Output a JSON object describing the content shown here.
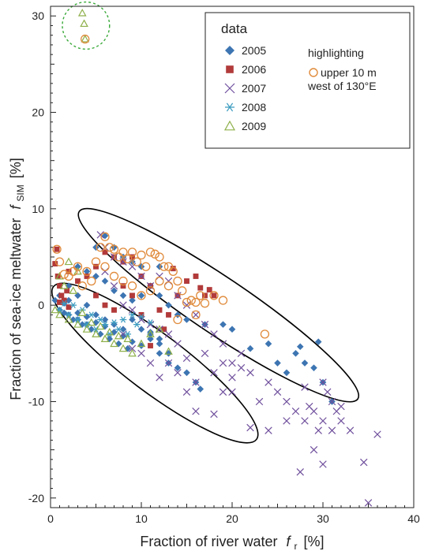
{
  "chart_data": {
    "type": "scatter",
    "title": "",
    "xlabel_main": "Fraction of river water",
    "xlabel_var": "f",
    "xlabel_sub": "r",
    "xlabel_unit": "[%]",
    "ylabel_main": "Fraction of sea-ice meltwater",
    "ylabel_var": "f",
    "ylabel_sub": "SIM",
    "ylabel_unit": "[%]",
    "xlim": [
      0,
      40
    ],
    "ylim": [
      -21,
      31
    ],
    "xticks": [
      0,
      10,
      20,
      30,
      40
    ],
    "yticks": [
      -20,
      -10,
      0,
      10,
      20,
      30
    ],
    "legend": {
      "title": "data",
      "highlight_title": "highlighting",
      "highlight_label_1": "upper 10 m",
      "highlight_label_2": "west of 130°E",
      "placement": "top-right"
    },
    "colors": {
      "2005": "#3d75b2",
      "2006": "#b23a3a",
      "2007": "#6f4f9c",
      "2008": "#3c9cc0",
      "2009": "#8eb04a",
      "highlight": "#e08a3a",
      "ellipse": "#000000",
      "outlier_circle": "#3aaa3a"
    },
    "series": [
      {
        "name": "2005",
        "marker": "diamond",
        "points": [
          [
            0.5,
            0.5
          ],
          [
            1,
            -0.5
          ],
          [
            1.5,
            0.2
          ],
          [
            2,
            -1
          ],
          [
            2.5,
            -1.5
          ],
          [
            3,
            -0.8
          ],
          [
            3.5,
            -2
          ],
          [
            4,
            -1.2
          ],
          [
            4.5,
            -2.5
          ],
          [
            5,
            -1.8
          ],
          [
            5.5,
            -3
          ],
          [
            6,
            -2.2
          ],
          [
            6.5,
            -3.5
          ],
          [
            7,
            -2.8
          ],
          [
            7.5,
            -4
          ],
          [
            8,
            -3.2
          ],
          [
            8.5,
            -4.5
          ],
          [
            9,
            -3.8
          ],
          [
            10,
            -4.2
          ],
          [
            11,
            -3.5
          ],
          [
            12,
            -5
          ],
          [
            13,
            -6
          ],
          [
            14,
            -6.5
          ],
          [
            15,
            -7
          ],
          [
            16,
            -8
          ],
          [
            16.5,
            -8.7
          ],
          [
            13,
            -5
          ],
          [
            12,
            -4
          ],
          [
            11,
            -3
          ],
          [
            3,
            4
          ],
          [
            4,
            3.5
          ],
          [
            5,
            3
          ],
          [
            6,
            2.5
          ],
          [
            7,
            1.5
          ],
          [
            8,
            1
          ],
          [
            9,
            0.5
          ],
          [
            10,
            1
          ],
          [
            11,
            2
          ],
          [
            12,
            1
          ],
          [
            13,
            0
          ],
          [
            14,
            -1
          ],
          [
            15,
            -1.5
          ],
          [
            17,
            -2
          ],
          [
            19,
            -2
          ],
          [
            20,
            -2.5
          ],
          [
            22,
            -4.5
          ],
          [
            24,
            -4
          ],
          [
            25,
            -6
          ],
          [
            26,
            -7
          ],
          [
            27,
            -5
          ],
          [
            28,
            -6
          ],
          [
            29,
            -6.5
          ],
          [
            29.5,
            -3.8
          ],
          [
            30,
            -8
          ],
          [
            31,
            -10
          ],
          [
            27.5,
            -4.3
          ],
          [
            6,
            7.2
          ],
          [
            5,
            6
          ],
          [
            8,
            5
          ],
          [
            7,
            6
          ],
          [
            9,
            4.5
          ],
          [
            10,
            4
          ],
          [
            12,
            4
          ],
          [
            1,
            1
          ],
          [
            2,
            0.5
          ],
          [
            1.5,
            -0.8
          ],
          [
            3,
            -1.5
          ],
          [
            4,
            -2
          ],
          [
            2,
            2
          ],
          [
            3,
            1
          ],
          [
            4,
            0
          ],
          [
            5,
            -1
          ],
          [
            6,
            -1.5
          ],
          [
            7,
            -2
          ],
          [
            8,
            -2.5
          ],
          [
            9,
            -1.5
          ],
          [
            10,
            -2.5
          ],
          [
            11,
            -2.8
          ],
          [
            12,
            -3.5
          ]
        ]
      },
      {
        "name": "2006",
        "marker": "square",
        "points": [
          [
            0.5,
            4.3
          ],
          [
            0.8,
            3
          ],
          [
            1,
            2
          ],
          [
            1.2,
            1
          ],
          [
            1.5,
            0.5
          ],
          [
            0.7,
            5.8
          ],
          [
            1.8,
            1.5
          ],
          [
            2,
            3.5
          ],
          [
            3,
            2.5
          ],
          [
            4,
            3
          ],
          [
            5,
            4
          ],
          [
            6,
            5.5
          ],
          [
            7,
            5
          ],
          [
            8,
            4.5
          ],
          [
            9,
            5
          ],
          [
            10,
            3
          ],
          [
            11,
            2
          ],
          [
            12,
            -0.5
          ],
          [
            13,
            -1
          ],
          [
            13.5,
            3.8
          ],
          [
            14,
            1
          ],
          [
            15,
            2.5
          ],
          [
            16,
            3
          ],
          [
            16.5,
            1.8
          ],
          [
            17,
            1
          ],
          [
            17.5,
            1.6
          ],
          [
            18,
            1
          ],
          [
            11,
            -4.2
          ],
          [
            12.5,
            -2.5
          ],
          [
            10,
            -1
          ],
          [
            5,
            1
          ],
          [
            6,
            0
          ],
          [
            7,
            -0.5
          ],
          [
            8,
            2
          ],
          [
            9,
            1
          ],
          [
            1,
            0.3
          ],
          [
            2,
            -0.2
          ]
        ]
      },
      {
        "name": "2007",
        "marker": "x",
        "points": [
          [
            5.5,
            7.3
          ],
          [
            6,
            6
          ],
          [
            7,
            5
          ],
          [
            8,
            4.5
          ],
          [
            9,
            4
          ],
          [
            10,
            3
          ],
          [
            11,
            2
          ],
          [
            12,
            3
          ],
          [
            13,
            2.5
          ],
          [
            14,
            1
          ],
          [
            15,
            0
          ],
          [
            16,
            -1
          ],
          [
            17,
            -2
          ],
          [
            18,
            -3
          ],
          [
            19,
            -4
          ],
          [
            20,
            -6
          ],
          [
            21,
            -6.5
          ],
          [
            22,
            -7
          ],
          [
            20,
            -9
          ],
          [
            22,
            -12.7
          ],
          [
            18,
            -11.3
          ],
          [
            23,
            -10
          ],
          [
            24,
            -8
          ],
          [
            25,
            -9
          ],
          [
            26,
            -10
          ],
          [
            27,
            -11
          ],
          [
            28,
            -12
          ],
          [
            29,
            -11
          ],
          [
            30,
            -12
          ],
          [
            31,
            -13
          ],
          [
            32,
            -12
          ],
          [
            29,
            -15
          ],
          [
            27.5,
            -17.3
          ],
          [
            30,
            -16.5
          ],
          [
            34.5,
            -16.3
          ],
          [
            36,
            -13.4
          ],
          [
            35,
            -20.5
          ],
          [
            33,
            -13
          ],
          [
            31,
            -10
          ],
          [
            30,
            -8
          ],
          [
            28,
            -8.5
          ],
          [
            26,
            -12
          ],
          [
            24,
            -13
          ],
          [
            16,
            -8
          ],
          [
            15,
            -9
          ],
          [
            14,
            -7
          ],
          [
            13,
            -6
          ],
          [
            12,
            -7.5
          ],
          [
            11,
            -6
          ],
          [
            10,
            -5
          ],
          [
            9,
            -4.5
          ],
          [
            8,
            -3
          ],
          [
            16,
            -11
          ],
          [
            18,
            -7
          ],
          [
            19,
            -9
          ],
          [
            21,
            -5
          ],
          [
            6,
            3.5
          ],
          [
            7,
            2
          ],
          [
            8,
            0
          ],
          [
            9,
            -0.5
          ],
          [
            10,
            -1.5
          ],
          [
            11,
            -2
          ],
          [
            12,
            -2.5
          ],
          [
            13,
            -3
          ],
          [
            14,
            -4
          ],
          [
            15,
            -5.5
          ],
          [
            17,
            -5
          ],
          [
            19,
            -6
          ],
          [
            20,
            -7.5
          ],
          [
            30.5,
            -9
          ],
          [
            31.5,
            -11
          ],
          [
            32,
            -10.5
          ],
          [
            28.5,
            -10.5
          ],
          [
            29.5,
            -13
          ]
        ]
      },
      {
        "name": "2008",
        "marker": "asterisk",
        "points": [
          [
            1,
            -0.5
          ],
          [
            2,
            -1
          ],
          [
            3,
            -1.5
          ],
          [
            4,
            -2
          ],
          [
            5,
            -2.5
          ],
          [
            6,
            -2
          ],
          [
            7,
            -1.8
          ],
          [
            8,
            -1.5
          ],
          [
            9,
            -1
          ],
          [
            10,
            -1.2
          ],
          [
            11,
            -1.8
          ],
          [
            6.5,
            -3
          ],
          [
            7.5,
            -2.5
          ],
          [
            8.5,
            -3
          ],
          [
            9.5,
            -2
          ],
          [
            5.5,
            -1.5
          ],
          [
            4.5,
            -1
          ],
          [
            3.5,
            -0.5
          ],
          [
            2.5,
            0
          ],
          [
            1.5,
            0.2
          ]
        ]
      },
      {
        "name": "2009",
        "marker": "triangle",
        "points": [
          [
            3.5,
            30.3
          ],
          [
            3.7,
            29.2
          ],
          [
            3.8,
            27.6
          ],
          [
            2,
            4.5
          ],
          [
            3,
            3.5
          ],
          [
            1,
            3
          ],
          [
            1.5,
            2
          ],
          [
            2.5,
            1.5
          ],
          [
            0.5,
            -0.5
          ],
          [
            1,
            -1
          ],
          [
            2,
            -1.5
          ],
          [
            3,
            -2
          ],
          [
            4,
            -2.5
          ],
          [
            5,
            -3
          ],
          [
            6,
            -3.5
          ],
          [
            7,
            -4
          ],
          [
            8,
            -4.5
          ],
          [
            9,
            -5
          ],
          [
            10,
            -4
          ],
          [
            11,
            -3
          ],
          [
            12,
            -2.5
          ],
          [
            13,
            -4.8
          ],
          [
            3.5,
            -0.8
          ],
          [
            4.5,
            -1.8
          ],
          [
            5.5,
            -2.2
          ],
          [
            6.5,
            -2.8
          ],
          [
            7.5,
            -3.2
          ],
          [
            8.5,
            -3.5
          ]
        ]
      }
    ],
    "highlight": [
      [
        0.7,
        5.8
      ],
      [
        1,
        4.5
      ],
      [
        1.5,
        3.2
      ],
      [
        2,
        3
      ],
      [
        2.5,
        3.5
      ],
      [
        3,
        4
      ],
      [
        4,
        3.5
      ],
      [
        5,
        4.5
      ],
      [
        5.5,
        6
      ],
      [
        6,
        7.1
      ],
      [
        6.5,
        6
      ],
      [
        7,
        5.8
      ],
      [
        7.5,
        5
      ],
      [
        8,
        5.5
      ],
      [
        8.5,
        4.8
      ],
      [
        9,
        5.5
      ],
      [
        9.5,
        4.5
      ],
      [
        10,
        5.2
      ],
      [
        10.5,
        4
      ],
      [
        11,
        5.5
      ],
      [
        11.5,
        5.3
      ],
      [
        12,
        5
      ],
      [
        12.5,
        4
      ],
      [
        13,
        4
      ],
      [
        13.5,
        3.5
      ],
      [
        14,
        2.5
      ],
      [
        14.5,
        1.5
      ],
      [
        15,
        0.3
      ],
      [
        15.5,
        0.5
      ],
      [
        16,
        0.3
      ],
      [
        16.5,
        1
      ],
      [
        17,
        0.2
      ],
      [
        18,
        1
      ],
      [
        19,
        0.5
      ],
      [
        14,
        -1.5
      ],
      [
        16,
        -1
      ],
      [
        23.6,
        -3
      ],
      [
        3.8,
        27.6
      ],
      [
        6,
        4
      ],
      [
        7,
        3
      ],
      [
        8,
        2.5
      ],
      [
        9,
        2
      ],
      [
        10,
        1
      ],
      [
        11,
        1.5
      ],
      [
        12,
        2.5
      ],
      [
        13,
        2
      ],
      [
        4.5,
        2.5
      ],
      [
        3.5,
        2
      ]
    ],
    "ellipses": [
      {
        "cx": 11.5,
        "cy": -6.0,
        "rx": 14.0,
        "ry": 3.2,
        "angle_deg": 37
      },
      {
        "cx": 18.5,
        "cy": 0.0,
        "rx": 18.5,
        "ry": 3.1,
        "angle_deg": 34
      }
    ],
    "outlier_circle": {
      "cx": 3.9,
      "cy": 29.0,
      "r_x": 2.6
    }
  }
}
